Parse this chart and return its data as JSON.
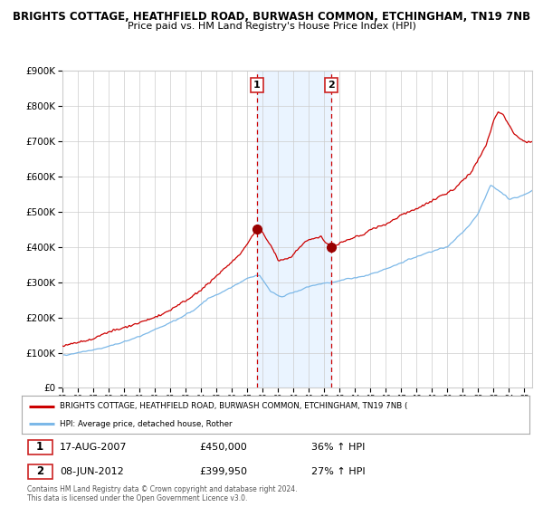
{
  "title1": "BRIGHTS COTTAGE, HEATHFIELD ROAD, BURWASH COMMON, ETCHINGHAM, TN19 7NB",
  "title2": "Price paid vs. HM Land Registry's House Price Index (HPI)",
  "legend_red": "BRIGHTS COTTAGE, HEATHFIELD ROAD, BURWASH COMMON, ETCHINGHAM, TN19 7NB (",
  "legend_blue": "HPI: Average price, detached house, Rother",
  "footnote": "Contains HM Land Registry data © Crown copyright and database right 2024.\nThis data is licensed under the Open Government Licence v3.0.",
  "ylim": [
    0,
    900000
  ],
  "yticks": [
    0,
    100000,
    200000,
    300000,
    400000,
    500000,
    600000,
    700000,
    800000,
    900000
  ],
  "ytick_labels": [
    "£0",
    "£100K",
    "£200K",
    "£300K",
    "£400K",
    "£500K",
    "£600K",
    "£700K",
    "£800K",
    "£900K"
  ],
  "xlim_start": 1995.0,
  "xlim_end": 2025.5,
  "sale1_x": 2007.625,
  "sale1_y": 450000,
  "sale1_label": "1",
  "sale1_date": "17-AUG-2007",
  "sale1_price": "£450,000",
  "sale1_hpi": "36% ↑ HPI",
  "sale2_x": 2012.44,
  "sale2_y": 399950,
  "sale2_label": "2",
  "sale2_date": "08-JUN-2012",
  "sale2_price": "£399,950",
  "sale2_hpi": "27% ↑ HPI",
  "shade_x1": 2007.625,
  "shade_x2": 2012.44,
  "bg_color": "#ffffff",
  "grid_color": "#cccccc",
  "red_line_color": "#cc0000",
  "blue_line_color": "#7cb8e8",
  "shade_color": "#ddeeff",
  "dashed_color": "#cc0000",
  "marker_color": "#990000",
  "box_color": "#cc2222",
  "title1_fontsize": 8.5,
  "title2_fontsize": 8.0
}
